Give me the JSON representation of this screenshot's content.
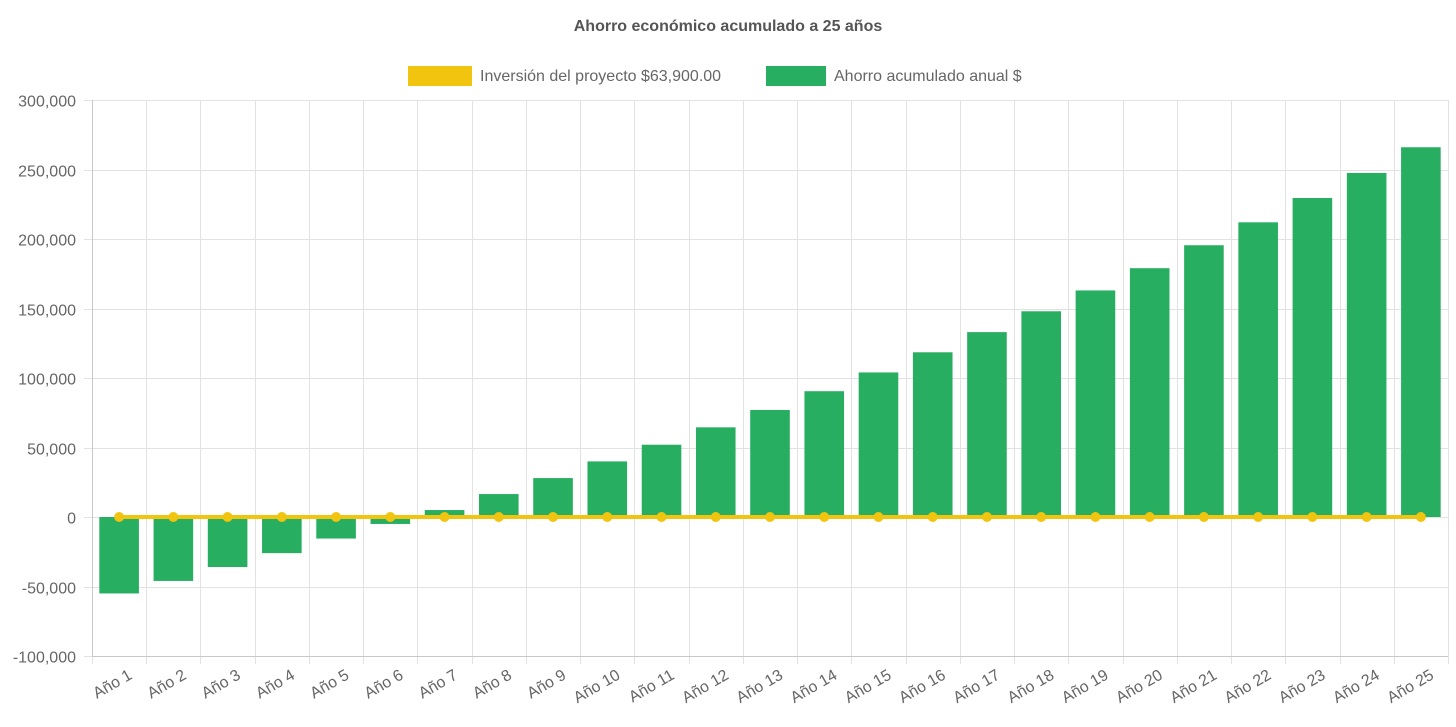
{
  "chart_data": {
    "type": "bar",
    "title": "Ahorro económico acumulado a 25 años",
    "categories": [
      "Año 1",
      "Año 2",
      "Año 3",
      "Año 4",
      "Año 5",
      "Año 6",
      "Año 7",
      "Año 8",
      "Año 9",
      "Año 10",
      "Año 11",
      "Año 12",
      "Año 13",
      "Año 14",
      "Año 15",
      "Año 16",
      "Año 17",
      "Año 18",
      "Año 19",
      "Año 20",
      "Año 21",
      "Año 22",
      "Año 23",
      "Año 24",
      "Año 25"
    ],
    "series": [
      {
        "name": "Inversión del proyecto $63,900.00",
        "type": "line",
        "color": "#f1c40f",
        "values": [
          0,
          0,
          0,
          0,
          0,
          0,
          0,
          0,
          0,
          0,
          0,
          0,
          0,
          0,
          0,
          0,
          0,
          0,
          0,
          0,
          0,
          0,
          0,
          0,
          0
        ]
      },
      {
        "name": "Ahorro acumulado anual $",
        "type": "bar",
        "color": "#27ae60",
        "values": [
          -55000,
          -46000,
          -36000,
          -26000,
          -15500,
          -5000,
          5000,
          16500,
          28000,
          40000,
          52000,
          64500,
          77000,
          90500,
          104000,
          118500,
          133000,
          148000,
          163000,
          179000,
          195500,
          212000,
          229500,
          247500,
          266000
        ]
      }
    ],
    "ylim": [
      -100000,
      300000
    ],
    "yticks": [
      300000,
      250000,
      200000,
      150000,
      100000,
      50000,
      0,
      -50000,
      -100000
    ],
    "ytick_labels": [
      "300,000",
      "250,000",
      "200,000",
      "150,000",
      "100,000",
      "50,000",
      "0",
      "-50,000",
      "-100,000"
    ],
    "xlabel": "",
    "ylabel": "",
    "grid": true,
    "legend_position": "top-center"
  }
}
